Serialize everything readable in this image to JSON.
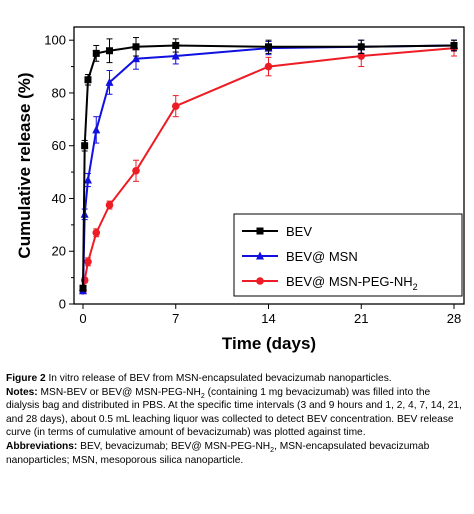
{
  "chart_data": {
    "type": "line",
    "title": "",
    "xlabel": "Time (days)",
    "ylabel": "Cumulative release (%)",
    "xlim": [
      0,
      28
    ],
    "ylim": [
      0,
      105
    ],
    "xticks": [
      "0",
      "7",
      "14",
      "21",
      "28"
    ],
    "yticks": [
      "0",
      "20",
      "40",
      "60",
      "80",
      "100"
    ],
    "grid": false,
    "legend_position": "bottom-right",
    "x": [
      0.125,
      0.375,
      1,
      2,
      4,
      7,
      14,
      21,
      28
    ],
    "series": [
      {
        "name": "BEV",
        "legend_main": "BEV",
        "legend_sub": "",
        "color": "#000000",
        "marker": "square",
        "values": [
          60,
          85,
          95,
          96,
          97.5,
          98,
          97.5,
          97.5,
          98
        ],
        "errors": [
          2,
          2,
          3,
          4.5,
          3.5,
          2.5,
          2.5,
          2.5,
          2
        ]
      },
      {
        "name": "BEV@ MSN",
        "legend_main": "BEV@ MSN",
        "legend_sub": "",
        "color": "#1010e0",
        "marker": "triangle",
        "values": [
          34,
          47,
          66,
          84,
          93,
          94,
          97,
          97.5,
          98
        ],
        "errors": [
          2,
          2.5,
          5,
          4.5,
          4,
          3,
          2.5,
          2.5,
          2
        ]
      },
      {
        "name": "BEV@ MSN-PEG-NH2",
        "legend_main": "BEV@ MSN-PEG-NH",
        "legend_sub": "2",
        "color": "#ee1c24",
        "marker": "circle",
        "values": [
          9,
          16,
          27,
          37.5,
          50.5,
          75,
          90,
          94,
          97
        ],
        "errors": [
          1,
          1.5,
          1.5,
          1.5,
          4,
          4,
          3.5,
          4,
          3
        ]
      }
    ],
    "origin": {
      "x": 0,
      "values": [
        6,
        5,
        5
      ],
      "errors": [
        1,
        1,
        1
      ]
    }
  },
  "caption": {
    "figure_label": "Figure 2",
    "figure_text": " In vitro release of BEV from MSN-encapsulated bevacizumab nanoparticles.",
    "notes_label": "Notes:",
    "notes_text_1": " MSN-BEV or BEV@ MSN-PEG-NH",
    "notes_sub": "2",
    "notes_text_2": " (containing 1 mg bevacizumab) was filled into the dialysis bag and distributed in PBS. At the specific time intervals (3 and 9 hours and 1, 2, 4, 7, 14, 21, and 28 days), about 0.5 mL leaching liquor was collected to detect BEV concentration. BEV release curve (in terms of cumulative amount of bevacizumab) was plotted against time.",
    "abbr_label": "Abbreviations:",
    "abbr_text_1": " BEV, bevacizumab; BEV@ MSN-PEG-NH",
    "abbr_sub": "2",
    "abbr_text_2": ", MSN-encapsulated bevacizumab nanoparticles; MSN, mesoporous silica nanoparticle."
  }
}
